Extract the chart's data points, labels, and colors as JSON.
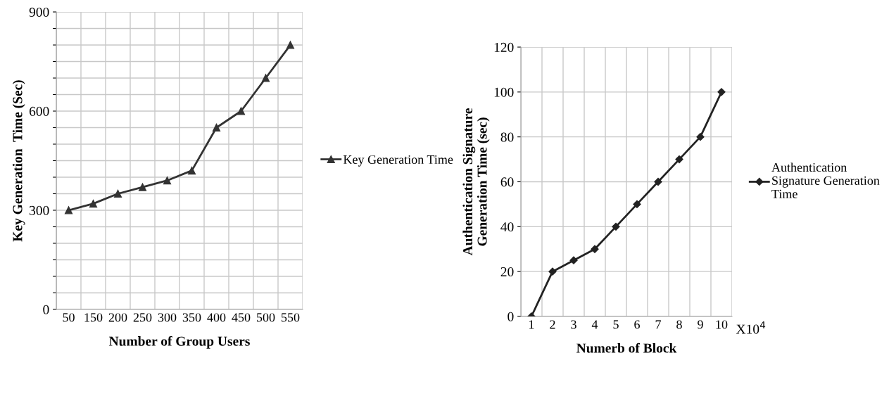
{
  "chart_data": [
    {
      "type": "line",
      "xlabel": "Number of Group Users",
      "ylabel": "Key Generation  Time (Sec)",
      "categories": [
        "50",
        "150",
        "200",
        "250",
        "300",
        "350",
        "400",
        "450",
        "500",
        "550"
      ],
      "series": [
        {
          "name": "Key Generation Time",
          "color": "#333333",
          "values": [
            300,
            320,
            350,
            370,
            390,
            420,
            550,
            600,
            700,
            800
          ]
        }
      ],
      "ylim": [
        0,
        900
      ],
      "yticks": [
        0,
        {
          "value": 50,
          "label": null
        },
        {
          "value": 100,
          "label": null
        },
        {
          "value": 150,
          "label": null
        },
        {
          "value": 200,
          "label": null
        },
        {
          "value": 250,
          "label": null
        },
        300,
        {
          "value": 350,
          "label": null
        },
        {
          "value": 400,
          "label": null
        },
        {
          "value": 450,
          "label": null
        },
        {
          "value": 500,
          "label": null
        },
        {
          "value": 550,
          "label": null
        },
        600,
        {
          "value": 650,
          "label": null
        },
        {
          "value": 700,
          "label": null
        },
        {
          "value": 750,
          "label": null
        },
        {
          "value": 800,
          "label": null
        },
        {
          "value": 850,
          "label": null
        },
        900
      ],
      "grid": true,
      "legend": "right",
      "marker": "triangle",
      "line_style": "solid"
    },
    {
      "type": "line",
      "xlabel": "Numerb of Block",
      "ylabel": "Authentication Signature\nGeneration Time (sec)",
      "categories": [
        "1",
        "2",
        "3",
        "4",
        "5",
        "6",
        "7",
        "8",
        "9",
        "10"
      ],
      "series": [
        {
          "name": "Authentication\nSignature Generation\nTime",
          "color": "#222222",
          "values": [
            0,
            20,
            25,
            30,
            40,
            50,
            60,
            70,
            80,
            100
          ]
        }
      ],
      "ylim": [
        0,
        120
      ],
      "yticks": [
        0,
        20,
        40,
        60,
        80,
        100,
        120
      ],
      "annotations": [
        "X10$^{4}$"
      ],
      "grid": true,
      "legend": "right",
      "marker": "diamond",
      "line_style": "solid"
    }
  ]
}
